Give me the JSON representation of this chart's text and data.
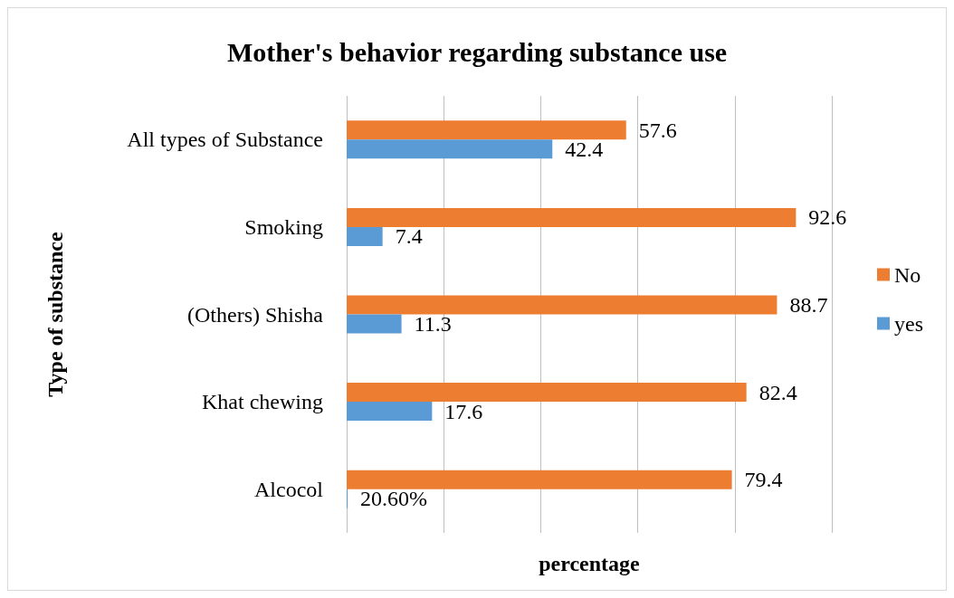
{
  "chart_data": {
    "type": "bar",
    "orientation": "horizontal",
    "title": "Mother's behavior regarding substance use",
    "xlabel": "percentage",
    "ylabel": "Type of substance",
    "categories": [
      "All types of Substance",
      "Smoking",
      "(Others) Shisha",
      "Khat chewing",
      "Alcocol"
    ],
    "series": [
      {
        "name": "No",
        "color": "#ed7d31",
        "values": [
          57.6,
          92.6,
          88.7,
          82.4,
          79.4
        ],
        "value_labels": [
          "57.6",
          "92.6",
          "88.7",
          "82.4",
          "79.4"
        ]
      },
      {
        "name": "yes",
        "color": "#5b9bd5",
        "values": [
          42.4,
          7.4,
          11.3,
          17.6,
          0.206
        ],
        "value_labels": [
          "42.4",
          "7.4",
          "11.3",
          "17.6",
          "20.60%"
        ]
      }
    ],
    "xlim": [
      0,
      100
    ],
    "xticks": [
      {
        "value": 0,
        "label": null
      },
      {
        "value": 20,
        "label": null
      },
      {
        "value": 40,
        "label": null
      },
      {
        "value": 60,
        "label": null
      },
      {
        "value": 80,
        "label": null
      },
      {
        "value": 100,
        "label": null
      }
    ],
    "grid": "x",
    "legend": "right",
    "tick_labels": "y"
  }
}
